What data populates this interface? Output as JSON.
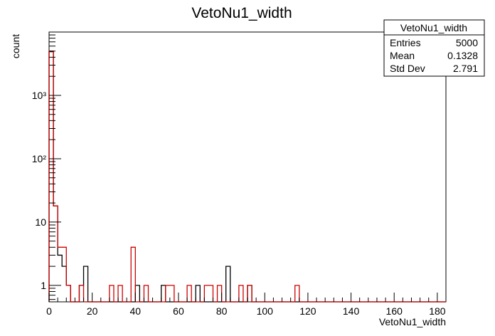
{
  "chart_data": {
    "type": "histogram",
    "title": "VetoNu1_width",
    "xlabel": "VetoNu1_width",
    "ylabel": "count",
    "xlim": [
      0,
      184
    ],
    "ylim": [
      0.55,
      10000
    ],
    "log_y": true,
    "grid": false,
    "bin_width": 2,
    "x_ticks": [
      "0",
      "20",
      "40",
      "60",
      "80",
      "100",
      "120",
      "140",
      "160",
      "180"
    ],
    "y_ticks": [
      "1",
      "10",
      "10²",
      "10³"
    ],
    "series": [
      {
        "color": "#000000",
        "bins": [
          {
            "x": 0,
            "count": 4900
          },
          {
            "x": 2,
            "count": 18
          },
          {
            "x": 4,
            "count": 3
          },
          {
            "x": 6,
            "count": 2
          },
          {
            "x": 8,
            "count": 1
          },
          {
            "x": 14,
            "count": 1
          },
          {
            "x": 16,
            "count": 2
          },
          {
            "x": 40,
            "count": 1
          },
          {
            "x": 52,
            "count": 1
          },
          {
            "x": 68,
            "count": 1
          },
          {
            "x": 82,
            "count": 2
          },
          {
            "x": 92,
            "count": 1
          }
        ]
      },
      {
        "color": "#cc0000",
        "bins": [
          {
            "x": 0,
            "count": 5000
          },
          {
            "x": 2,
            "count": 18
          },
          {
            "x": 4,
            "count": 4
          },
          {
            "x": 6,
            "count": 4
          },
          {
            "x": 8,
            "count": 1
          },
          {
            "x": 14,
            "count": 1
          },
          {
            "x": 28,
            "count": 1
          },
          {
            "x": 32,
            "count": 1
          },
          {
            "x": 38,
            "count": 4
          },
          {
            "x": 44,
            "count": 1
          },
          {
            "x": 54,
            "count": 1
          },
          {
            "x": 56,
            "count": 1
          },
          {
            "x": 64,
            "count": 1
          },
          {
            "x": 72,
            "count": 1
          },
          {
            "x": 74,
            "count": 1
          },
          {
            "x": 78,
            "count": 1
          },
          {
            "x": 88,
            "count": 1
          },
          {
            "x": 92,
            "count": 1
          },
          {
            "x": 114,
            "count": 1
          }
        ]
      }
    ],
    "stats_box": {
      "title": "VetoNu1_width",
      "rows": [
        {
          "label": "Entries",
          "value": "5000"
        },
        {
          "label": "Mean",
          "value": "0.1328"
        },
        {
          "label": "Std Dev",
          "value": "2.791"
        }
      ]
    }
  }
}
